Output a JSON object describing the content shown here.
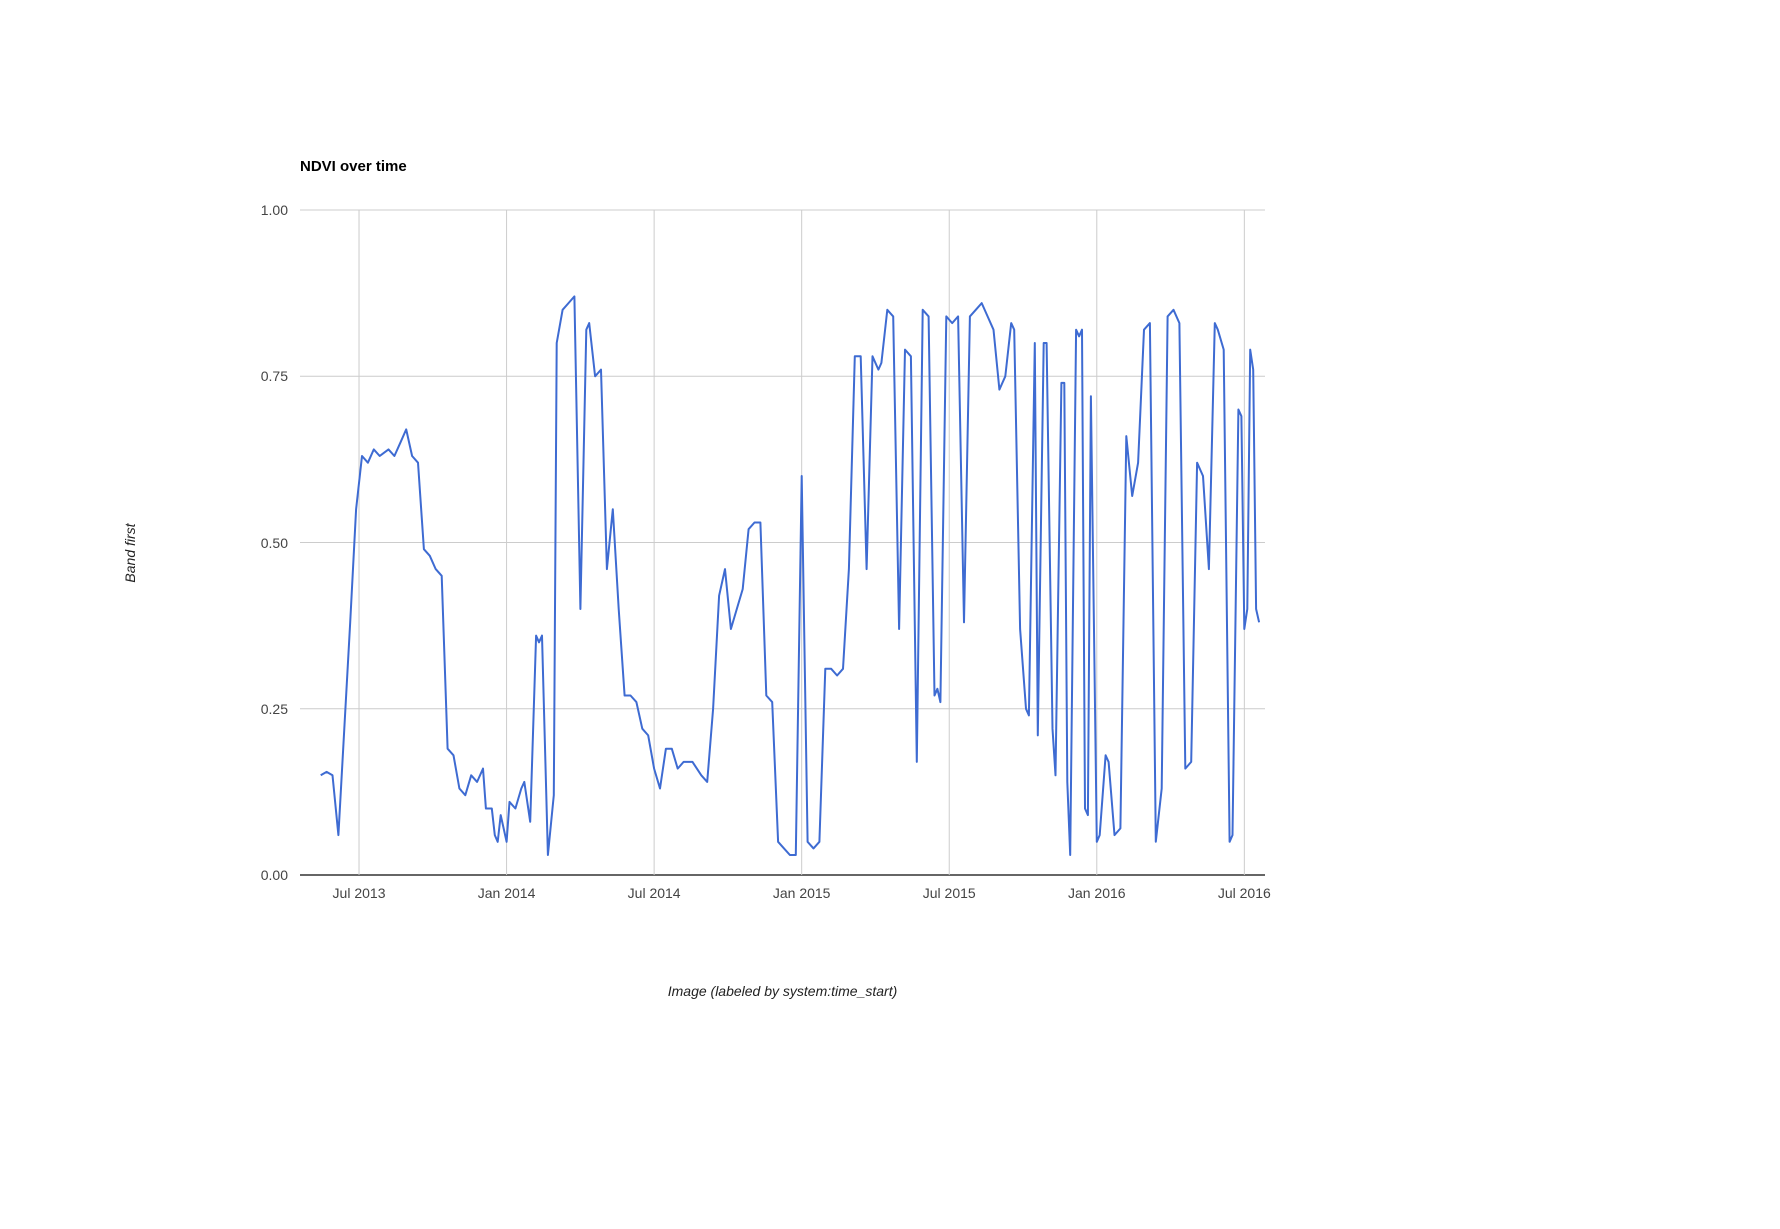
{
  "chart_data": {
    "type": "line",
    "title": "NDVI over time",
    "xlabel": "Image (labeled by system:time_start)",
    "ylabel": "Band first",
    "series_name": "NDVI",
    "line_color": "#3e6bd2",
    "grid_color": "#cccccc",
    "baseline_color": "#333333",
    "grid": "on",
    "legend": "none",
    "xlim": [
      2013.3,
      2016.57
    ],
    "ylim": [
      0,
      1
    ],
    "y_ticks": [
      {
        "value": 0.0,
        "label": "0.00"
      },
      {
        "value": 0.25,
        "label": "0.25"
      },
      {
        "value": 0.5,
        "label": "0.50"
      },
      {
        "value": 0.75,
        "label": "0.75"
      },
      {
        "value": 1.0,
        "label": "1.00"
      }
    ],
    "x_ticks": [
      {
        "value": 2013.5,
        "label": "Jul 2013"
      },
      {
        "value": 2014.0,
        "label": "Jan 2014"
      },
      {
        "value": 2014.5,
        "label": "Jul 2014"
      },
      {
        "value": 2015.0,
        "label": "Jan 2015"
      },
      {
        "value": 2015.5,
        "label": "Jul 2015"
      },
      {
        "value": 2016.0,
        "label": "Jan 2016"
      },
      {
        "value": 2016.5,
        "label": "Jul 2016"
      }
    ],
    "points": [
      [
        2013.37,
        0.15
      ],
      [
        2013.39,
        0.155
      ],
      [
        2013.41,
        0.15
      ],
      [
        2013.43,
        0.06
      ],
      [
        2013.45,
        0.22
      ],
      [
        2013.47,
        0.38
      ],
      [
        2013.49,
        0.55
      ],
      [
        2013.51,
        0.63
      ],
      [
        2013.53,
        0.62
      ],
      [
        2013.55,
        0.64
      ],
      [
        2013.57,
        0.63
      ],
      [
        2013.6,
        0.64
      ],
      [
        2013.62,
        0.63
      ],
      [
        2013.64,
        0.65
      ],
      [
        2013.66,
        0.67
      ],
      [
        2013.68,
        0.63
      ],
      [
        2013.7,
        0.62
      ],
      [
        2013.72,
        0.49
      ],
      [
        2013.74,
        0.48
      ],
      [
        2013.76,
        0.46
      ],
      [
        2013.78,
        0.45
      ],
      [
        2013.8,
        0.19
      ],
      [
        2013.82,
        0.18
      ],
      [
        2013.84,
        0.13
      ],
      [
        2013.86,
        0.12
      ],
      [
        2013.88,
        0.15
      ],
      [
        2013.9,
        0.14
      ],
      [
        2013.92,
        0.16
      ],
      [
        2013.93,
        0.1
      ],
      [
        2013.95,
        0.1
      ],
      [
        2013.96,
        0.06
      ],
      [
        2013.97,
        0.05
      ],
      [
        2013.98,
        0.09
      ],
      [
        2014.0,
        0.05
      ],
      [
        2014.01,
        0.11
      ],
      [
        2014.03,
        0.1
      ],
      [
        2014.05,
        0.13
      ],
      [
        2014.06,
        0.14
      ],
      [
        2014.08,
        0.08
      ],
      [
        2014.1,
        0.36
      ],
      [
        2014.11,
        0.35
      ],
      [
        2014.12,
        0.36
      ],
      [
        2014.14,
        0.03
      ],
      [
        2014.16,
        0.12
      ],
      [
        2014.17,
        0.8
      ],
      [
        2014.19,
        0.85
      ],
      [
        2014.21,
        0.86
      ],
      [
        2014.23,
        0.87
      ],
      [
        2014.25,
        0.4
      ],
      [
        2014.27,
        0.82
      ],
      [
        2014.28,
        0.83
      ],
      [
        2014.3,
        0.75
      ],
      [
        2014.32,
        0.76
      ],
      [
        2014.34,
        0.46
      ],
      [
        2014.36,
        0.55
      ],
      [
        2014.38,
        0.4
      ],
      [
        2014.4,
        0.27
      ],
      [
        2014.42,
        0.27
      ],
      [
        2014.44,
        0.26
      ],
      [
        2014.46,
        0.22
      ],
      [
        2014.48,
        0.21
      ],
      [
        2014.5,
        0.16
      ],
      [
        2014.52,
        0.13
      ],
      [
        2014.54,
        0.19
      ],
      [
        2014.56,
        0.19
      ],
      [
        2014.58,
        0.16
      ],
      [
        2014.6,
        0.17
      ],
      [
        2014.63,
        0.17
      ],
      [
        2014.66,
        0.15
      ],
      [
        2014.68,
        0.14
      ],
      [
        2014.7,
        0.25
      ],
      [
        2014.72,
        0.42
      ],
      [
        2014.74,
        0.46
      ],
      [
        2014.76,
        0.37
      ],
      [
        2014.78,
        0.4
      ],
      [
        2014.8,
        0.43
      ],
      [
        2014.82,
        0.52
      ],
      [
        2014.84,
        0.53
      ],
      [
        2014.86,
        0.53
      ],
      [
        2014.88,
        0.27
      ],
      [
        2014.9,
        0.26
      ],
      [
        2014.92,
        0.05
      ],
      [
        2014.94,
        0.04
      ],
      [
        2014.96,
        0.03
      ],
      [
        2014.98,
        0.03
      ],
      [
        2015.0,
        0.6
      ],
      [
        2015.02,
        0.05
      ],
      [
        2015.04,
        0.04
      ],
      [
        2015.06,
        0.05
      ],
      [
        2015.08,
        0.31
      ],
      [
        2015.1,
        0.31
      ],
      [
        2015.12,
        0.3
      ],
      [
        2015.14,
        0.31
      ],
      [
        2015.16,
        0.46
      ],
      [
        2015.18,
        0.78
      ],
      [
        2015.2,
        0.78
      ],
      [
        2015.22,
        0.46
      ],
      [
        2015.24,
        0.78
      ],
      [
        2015.26,
        0.76
      ],
      [
        2015.27,
        0.77
      ],
      [
        2015.29,
        0.85
      ],
      [
        2015.31,
        0.84
      ],
      [
        2015.33,
        0.37
      ],
      [
        2015.35,
        0.79
      ],
      [
        2015.37,
        0.78
      ],
      [
        2015.39,
        0.17
      ],
      [
        2015.41,
        0.85
      ],
      [
        2015.43,
        0.84
      ],
      [
        2015.45,
        0.27
      ],
      [
        2015.46,
        0.28
      ],
      [
        2015.47,
        0.26
      ],
      [
        2015.49,
        0.84
      ],
      [
        2015.51,
        0.83
      ],
      [
        2015.53,
        0.84
      ],
      [
        2015.55,
        0.38
      ],
      [
        2015.57,
        0.84
      ],
      [
        2015.59,
        0.85
      ],
      [
        2015.61,
        0.86
      ],
      [
        2015.63,
        0.84
      ],
      [
        2015.65,
        0.82
      ],
      [
        2015.67,
        0.73
      ],
      [
        2015.69,
        0.75
      ],
      [
        2015.71,
        0.83
      ],
      [
        2015.72,
        0.82
      ],
      [
        2015.74,
        0.37
      ],
      [
        2015.76,
        0.25
      ],
      [
        2015.77,
        0.24
      ],
      [
        2015.79,
        0.8
      ],
      [
        2015.8,
        0.21
      ],
      [
        2015.82,
        0.8
      ],
      [
        2015.83,
        0.8
      ],
      [
        2015.85,
        0.22
      ],
      [
        2015.86,
        0.15
      ],
      [
        2015.88,
        0.74
      ],
      [
        2015.89,
        0.74
      ],
      [
        2015.9,
        0.14
      ],
      [
        2015.91,
        0.03
      ],
      [
        2015.93,
        0.82
      ],
      [
        2015.94,
        0.81
      ],
      [
        2015.95,
        0.82
      ],
      [
        2015.96,
        0.1
      ],
      [
        2015.97,
        0.09
      ],
      [
        2015.98,
        0.72
      ],
      [
        2016.0,
        0.05
      ],
      [
        2016.01,
        0.06
      ],
      [
        2016.03,
        0.18
      ],
      [
        2016.04,
        0.17
      ],
      [
        2016.06,
        0.06
      ],
      [
        2016.08,
        0.07
      ],
      [
        2016.1,
        0.66
      ],
      [
        2016.12,
        0.57
      ],
      [
        2016.14,
        0.62
      ],
      [
        2016.16,
        0.82
      ],
      [
        2016.18,
        0.83
      ],
      [
        2016.2,
        0.05
      ],
      [
        2016.22,
        0.13
      ],
      [
        2016.24,
        0.84
      ],
      [
        2016.26,
        0.85
      ],
      [
        2016.28,
        0.83
      ],
      [
        2016.3,
        0.16
      ],
      [
        2016.32,
        0.17
      ],
      [
        2016.34,
        0.62
      ],
      [
        2016.36,
        0.6
      ],
      [
        2016.38,
        0.46
      ],
      [
        2016.4,
        0.83
      ],
      [
        2016.41,
        0.82
      ],
      [
        2016.43,
        0.79
      ],
      [
        2016.45,
        0.05
      ],
      [
        2016.46,
        0.06
      ],
      [
        2016.48,
        0.7
      ],
      [
        2016.49,
        0.69
      ],
      [
        2016.5,
        0.37
      ],
      [
        2016.51,
        0.4
      ],
      [
        2016.52,
        0.79
      ],
      [
        2016.53,
        0.76
      ],
      [
        2016.54,
        0.4
      ],
      [
        2016.55,
        0.38
      ]
    ]
  }
}
